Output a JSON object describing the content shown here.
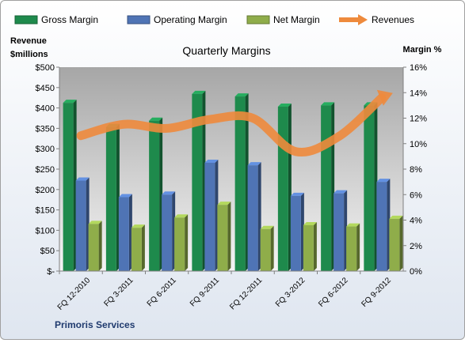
{
  "chart_data": {
    "type": "bar",
    "title": "Quarterly Margins",
    "ylabel_left": [
      "Revenue",
      "$millions"
    ],
    "ylabel_right": "Margin %",
    "footer": "Primoris Services",
    "categories": [
      "FQ 12-2010",
      "FQ 3-2011",
      "FQ 6-2011",
      "FQ 9-2011",
      "FQ 12-2011",
      "FQ 3-2012",
      "FQ 6-2012",
      "FQ 9-2012"
    ],
    "left_axis": {
      "ylim": [
        0,
        500
      ],
      "ticks": [
        0,
        50,
        100,
        150,
        200,
        250,
        300,
        350,
        400,
        450,
        500
      ],
      "tick_labels": [
        "$-",
        "$50",
        "$100",
        "$150",
        "$200",
        "$250",
        "$300",
        "$350",
        "$400",
        "$450",
        "$500"
      ]
    },
    "right_axis": {
      "ylim": [
        0,
        16
      ],
      "ticks": [
        0,
        2,
        4,
        6,
        8,
        10,
        12,
        14,
        16
      ],
      "tick_labels": [
        "0%",
        "2%",
        "4%",
        "6%",
        "8%",
        "10%",
        "12%",
        "14%",
        "16%"
      ]
    },
    "series": [
      {
        "name": "Gross Margin",
        "type": "bar",
        "axis": "right",
        "color": "#1e8a4c",
        "values": [
          13.2,
          11.3,
          11.8,
          13.9,
          13.7,
          12.9,
          13.0,
          13.0
        ]
      },
      {
        "name": "Operating Margin",
        "type": "bar",
        "axis": "right",
        "color": "#4f74b5",
        "values": [
          7.1,
          5.8,
          6.0,
          8.5,
          8.3,
          5.9,
          6.1,
          7.0
        ]
      },
      {
        "name": "Net Margin",
        "type": "bar",
        "axis": "right",
        "color": "#8fad4a",
        "values": [
          3.7,
          3.4,
          4.2,
          5.2,
          3.3,
          3.6,
          3.5,
          4.1
        ]
      },
      {
        "name": "Revenues",
        "type": "line",
        "axis": "left",
        "color": "#ee8a3c",
        "values": [
          332,
          360,
          350,
          372,
          375,
          293,
          330,
          425
        ]
      }
    ],
    "legend_position": "top",
    "grid": false
  }
}
